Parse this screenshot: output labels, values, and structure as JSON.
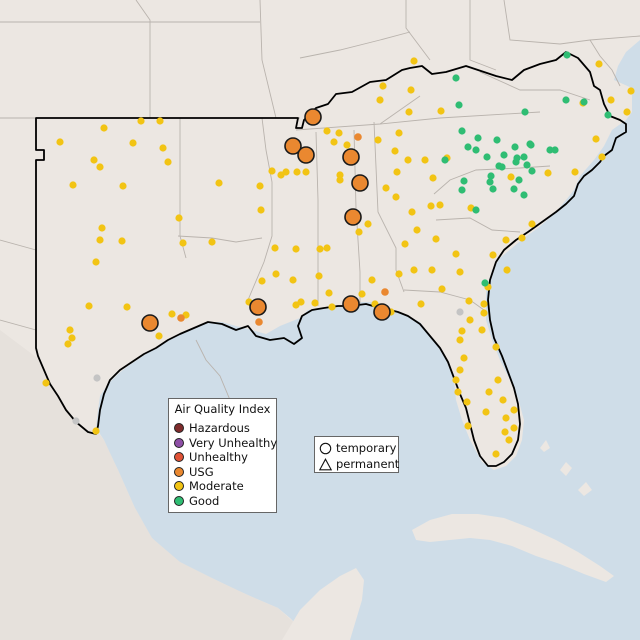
{
  "colors": {
    "ocean": "#cfdde8",
    "land": "#ece7e2",
    "landSouth": "#e6e1dc",
    "stateBorder": "#b9b3ad",
    "regionBorder": "#000000",
    "Hazardous": "#7e2b2b",
    "VeryUnhealthy": "#8e4fa6",
    "Unhealthy": "#e05236",
    "USG": "#ea8830",
    "Moderate": "#f2c414",
    "Good": "#2fbd73"
  },
  "legend": {
    "title": "Air Quality Index",
    "items": [
      {
        "label": "Hazardous",
        "color": "#7e2b2b"
      },
      {
        "label": "Very Unhealthy",
        "color": "#8e4fa6"
      },
      {
        "label": "Unhealthy",
        "color": "#e05236"
      },
      {
        "label": "USG",
        "color": "#ea8830"
      },
      {
        "label": "Moderate",
        "color": "#f2c414"
      },
      {
        "label": "Good",
        "color": "#2fbd73"
      }
    ]
  },
  "shape_legend": {
    "items": [
      {
        "label": "temporary",
        "shape": "circle"
      },
      {
        "label": "permanent",
        "shape": "triangle"
      }
    ]
  },
  "monitors": {
    "USG_large": [
      [
        313,
        117
      ],
      [
        293,
        146
      ],
      [
        306,
        155
      ],
      [
        351,
        157
      ],
      [
        360,
        183
      ],
      [
        353,
        217
      ],
      [
        150,
        323
      ],
      [
        258,
        307
      ],
      [
        351,
        304
      ],
      [
        382,
        312
      ]
    ],
    "USG_small": [
      [
        358,
        137
      ],
      [
        181,
        318
      ],
      [
        259,
        322
      ],
      [
        385,
        292
      ]
    ],
    "Moderate": [
      [
        60,
        142
      ],
      [
        104,
        128
      ],
      [
        133,
        143
      ],
      [
        141,
        121
      ],
      [
        160,
        121
      ],
      [
        163,
        148
      ],
      [
        94,
        160
      ],
      [
        100,
        167
      ],
      [
        73,
        185
      ],
      [
        123,
        186
      ],
      [
        168,
        162
      ],
      [
        179,
        218
      ],
      [
        102,
        228
      ],
      [
        100,
        240
      ],
      [
        122,
        241
      ],
      [
        183,
        243
      ],
      [
        212,
        242
      ],
      [
        96,
        262
      ],
      [
        89,
        306
      ],
      [
        127,
        307
      ],
      [
        172,
        314
      ],
      [
        186,
        315
      ],
      [
        159,
        336
      ],
      [
        70,
        330
      ],
      [
        72,
        338
      ],
      [
        68,
        344
      ],
      [
        46,
        383
      ],
      [
        96,
        431
      ],
      [
        219,
        183
      ],
      [
        260,
        186
      ],
      [
        261,
        210
      ],
      [
        272,
        171
      ],
      [
        281,
        175
      ],
      [
        297,
        172
      ],
      [
        275,
        248
      ],
      [
        296,
        249
      ],
      [
        262,
        281
      ],
      [
        249,
        302
      ],
      [
        293,
        280
      ],
      [
        296,
        305
      ],
      [
        315,
        303
      ],
      [
        329,
        293
      ],
      [
        332,
        307
      ],
      [
        340,
        180
      ],
      [
        368,
        224
      ],
      [
        320,
        249
      ],
      [
        319,
        276
      ],
      [
        362,
        294
      ],
      [
        375,
        304
      ],
      [
        391,
        312
      ],
      [
        372,
        280
      ],
      [
        339,
        133
      ],
      [
        327,
        131
      ],
      [
        334,
        142
      ],
      [
        378,
        140
      ],
      [
        399,
        133
      ],
      [
        395,
        151
      ],
      [
        408,
        160
      ],
      [
        397,
        172
      ],
      [
        386,
        188
      ],
      [
        396,
        197
      ],
      [
        412,
        212
      ],
      [
        431,
        206
      ],
      [
        417,
        230
      ],
      [
        436,
        239
      ],
      [
        405,
        244
      ],
      [
        399,
        274
      ],
      [
        414,
        270
      ],
      [
        442,
        289
      ],
      [
        432,
        270
      ],
      [
        460,
        272
      ],
      [
        456,
        254
      ],
      [
        440,
        205
      ],
      [
        425,
        160
      ],
      [
        447,
        158
      ],
      [
        421,
        304
      ],
      [
        469,
        301
      ],
      [
        462,
        331
      ],
      [
        470,
        320
      ],
      [
        488,
        287
      ],
      [
        493,
        255
      ],
      [
        484,
        304
      ],
      [
        484,
        313
      ],
      [
        460,
        340
      ],
      [
        464,
        358
      ],
      [
        482,
        330
      ],
      [
        496,
        347
      ],
      [
        498,
        380
      ],
      [
        489,
        392
      ],
      [
        460,
        370
      ],
      [
        456,
        380
      ],
      [
        458,
        392
      ],
      [
        467,
        402
      ],
      [
        468,
        426
      ],
      [
        486,
        412
      ],
      [
        503,
        400
      ],
      [
        514,
        410
      ],
      [
        506,
        418
      ],
      [
        514,
        428
      ],
      [
        505,
        432
      ],
      [
        509,
        440
      ],
      [
        496,
        454
      ],
      [
        522,
        238
      ],
      [
        506,
        240
      ],
      [
        507,
        270
      ],
      [
        532,
        224
      ],
      [
        511,
        177
      ],
      [
        548,
        173
      ],
      [
        583,
        103
      ],
      [
        599,
        64
      ],
      [
        611,
        100
      ],
      [
        631,
        91
      ],
      [
        627,
        112
      ],
      [
        596,
        139
      ],
      [
        602,
        157
      ],
      [
        575,
        172
      ],
      [
        409,
        112
      ],
      [
        441,
        111
      ],
      [
        411,
        90
      ],
      [
        383,
        86
      ],
      [
        380,
        100
      ],
      [
        347,
        145
      ],
      [
        340,
        175
      ],
      [
        359,
        232
      ],
      [
        286,
        172
      ],
      [
        306,
        172
      ],
      [
        276,
        274
      ],
      [
        327,
        248
      ],
      [
        301,
        302
      ],
      [
        471,
        208
      ],
      [
        414,
        61
      ],
      [
        433,
        178
      ]
    ],
    "Good": [
      [
        456,
        78
      ],
      [
        459,
        105
      ],
      [
        462,
        131
      ],
      [
        468,
        147
      ],
      [
        476,
        150
      ],
      [
        478,
        138
      ],
      [
        497,
        140
      ],
      [
        504,
        155
      ],
      [
        515,
        147
      ],
      [
        530,
        144
      ],
      [
        524,
        157
      ],
      [
        517,
        158
      ],
      [
        550,
        150
      ],
      [
        555,
        150
      ],
      [
        527,
        165
      ],
      [
        499,
        166
      ],
      [
        487,
        157
      ],
      [
        445,
        160
      ],
      [
        464,
        181
      ],
      [
        491,
        176
      ],
      [
        493,
        189
      ],
      [
        490,
        182
      ],
      [
        462,
        190
      ],
      [
        476,
        210
      ],
      [
        519,
        180
      ],
      [
        524,
        195
      ],
      [
        514,
        189
      ],
      [
        525,
        112
      ],
      [
        566,
        100
      ],
      [
        584,
        102
      ],
      [
        608,
        115
      ],
      [
        567,
        55
      ],
      [
        485,
        283
      ],
      [
        516,
        162
      ],
      [
        532,
        171
      ],
      [
        531,
        145
      ],
      [
        502,
        167
      ]
    ],
    "Grey": [
      [
        460,
        312
      ],
      [
        97,
        378
      ],
      [
        76,
        421
      ]
    ]
  }
}
